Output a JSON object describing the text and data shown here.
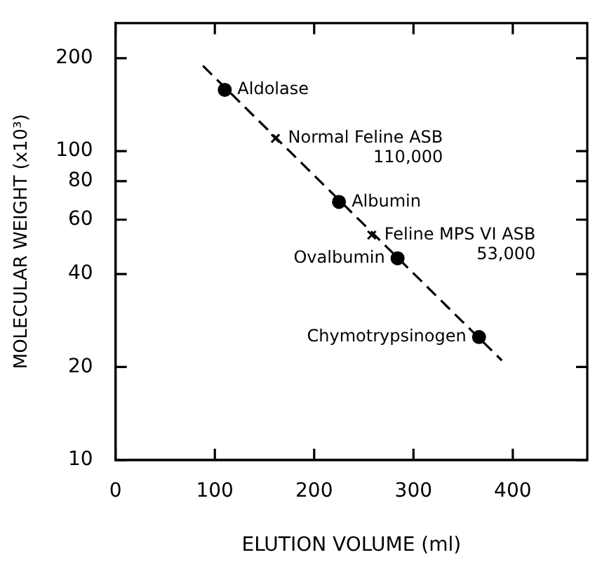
{
  "chart_data": {
    "type": "scatter",
    "xlabel": "ELUTION VOLUME (ml)",
    "ylabel": "MOLECULAR WEIGHT (x10³)",
    "xlim": [
      0,
      475
    ],
    "xticks": [
      0,
      100,
      200,
      300,
      400
    ],
    "ylim": [
      10,
      260
    ],
    "yticks": [
      10,
      20,
      40,
      60,
      80,
      100,
      200
    ],
    "log": "y",
    "grid": false,
    "legend": false,
    "series": [
      {
        "color": "#000000",
        "marker": "circle",
        "x": [
          110,
          225,
          284,
          366
        ],
        "values": [
          158,
          68.5,
          45,
          25
        ]
      },
      {
        "color": "#000000",
        "marker": "cross",
        "x": [
          161,
          258
        ],
        "values": [
          110,
          53.5
        ]
      },
      {
        "type": "line",
        "color": "#000000",
        "marker": "none",
        "line_style": "dashed",
        "x": [
          88,
          389
        ],
        "values": [
          189,
          21
        ]
      }
    ],
    "annotations": [
      {
        "text": "Aldolase",
        "x": 110,
        "y": 158
      },
      {
        "text": "Normal Feline ASB\n110,000",
        "x": 161,
        "y": 110
      },
      {
        "text": "Albumin",
        "x": 225,
        "y": 68.5
      },
      {
        "text": "Feline MPS VI ASB\n53,000",
        "x": 258,
        "y": 53.5
      },
      {
        "text": "Ovalbumin",
        "x": 284,
        "y": 45
      },
      {
        "text": "Chymotrypsinogen",
        "x": 366,
        "y": 25
      }
    ]
  }
}
